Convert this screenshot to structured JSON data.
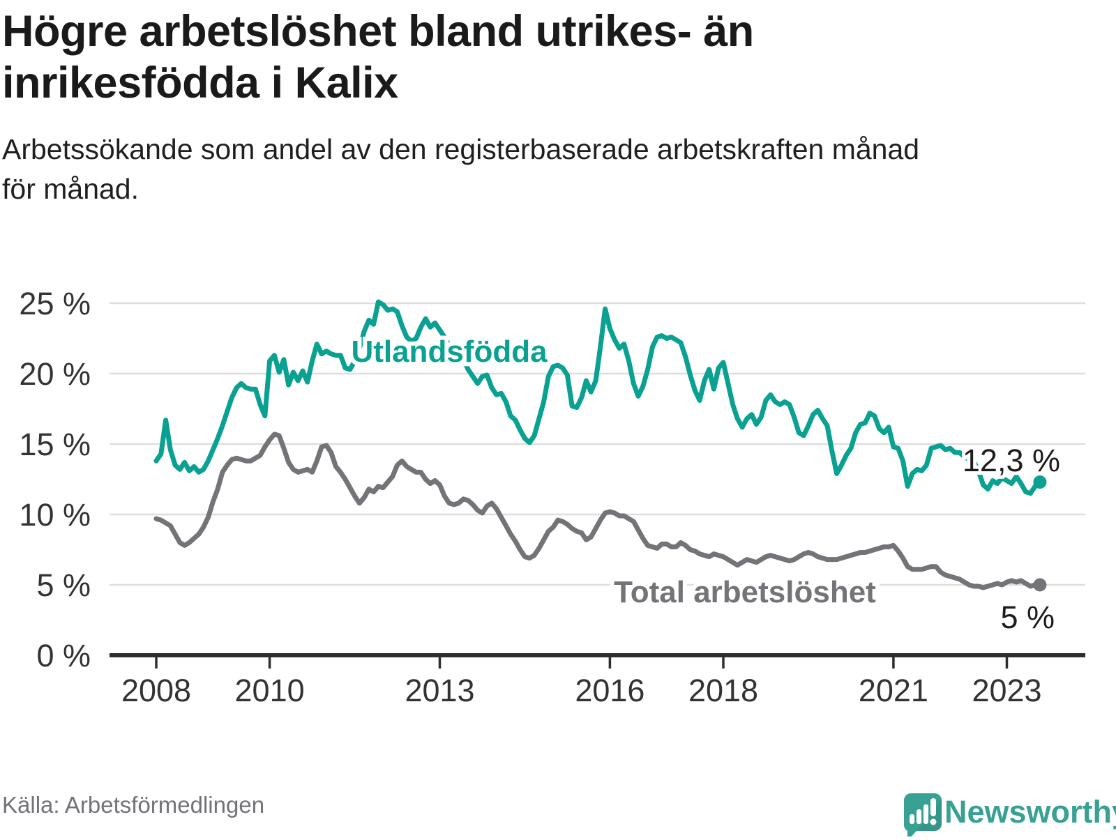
{
  "header": {
    "title_line1": "Högre arbetslöshet bland utrikes- än",
    "title_line2": "inrikesfödda i Kalix",
    "subtitle_line1": "Arbetssökande som andel av den registerbaserade arbetskraften månad",
    "subtitle_line2": "för månad."
  },
  "footer": {
    "source": "Källa: Arbetsförmedlingen",
    "brand": "Newsworthy"
  },
  "colors": {
    "series_foreign": "#0aa192",
    "series_total": "#737378",
    "grid": "#dedede",
    "axis": "#2d2d2d",
    "axis_text": "#333333",
    "annotation_text": "#1d1d1d",
    "logo_teal": "#38a193",
    "source_text": "#72727a"
  },
  "chart_data": {
    "type": "line",
    "title": "Högre arbetslöshet bland utrikes- än inrikesfödda i Kalix",
    "subtitle": "Arbetssökande som andel av den registerbaserade arbetskraften månad för månad.",
    "xlabel": "",
    "ylabel": "",
    "grid": "horizontal",
    "legend_position": "inline-labels",
    "x_start_year": 2008,
    "x_start_month": 1,
    "frequency": "monthly",
    "ylim": [
      0,
      25
    ],
    "yticks": [
      0,
      5,
      10,
      15,
      20,
      25
    ],
    "ytick_labels": [
      "0 %",
      "5 %",
      "10 %",
      "15 %",
      "20 %",
      "25 %"
    ],
    "xticks": [
      2008,
      2010,
      2013,
      2016,
      2018,
      2021,
      2023
    ],
    "xtick_labels": [
      "2008",
      "2010",
      "2013",
      "2016",
      "2018",
      "2021",
      "2023"
    ],
    "series": [
      {
        "name": "Utlandsfödda",
        "color": "#0aa192",
        "end_label": "12,3 %",
        "end_value": 12.3,
        "values": [
          13.8,
          14.3,
          16.7,
          14.6,
          13.5,
          13.2,
          13.7,
          13.1,
          13.4,
          13.0,
          13.2,
          13.8,
          14.6,
          15.4,
          16.3,
          17.3,
          18.3,
          19.0,
          19.3,
          19.0,
          18.9,
          18.9,
          17.8,
          17.0,
          20.9,
          21.3,
          20.1,
          21.0,
          19.2,
          20.1,
          19.5,
          20.2,
          19.4,
          20.9,
          22.1,
          21.4,
          21.6,
          21.4,
          21.3,
          21.3,
          20.4,
          20.3,
          20.9,
          21.8,
          23.0,
          23.8,
          23.5,
          25.1,
          24.9,
          24.5,
          24.6,
          24.4,
          23.4,
          22.6,
          22.3,
          22.5,
          23.3,
          23.9,
          23.3,
          23.6,
          23.1,
          22.6,
          22.0,
          21.5,
          21.0,
          21.0,
          20.3,
          19.8,
          19.3,
          19.8,
          19.9,
          19.0,
          18.5,
          18.6,
          18.0,
          17.0,
          16.7,
          16.0,
          15.4,
          15.1,
          15.6,
          16.8,
          18.0,
          19.8,
          20.5,
          20.6,
          20.4,
          19.9,
          17.7,
          17.6,
          18.3,
          19.5,
          18.7,
          19.5,
          21.9,
          24.6,
          23.2,
          22.4,
          21.8,
          22.1,
          20.9,
          19.3,
          18.4,
          19.1,
          20.3,
          21.9,
          22.6,
          22.7,
          22.5,
          22.6,
          22.4,
          22.2,
          21.2,
          19.9,
          18.8,
          18.1,
          19.5,
          20.3,
          18.9,
          20.4,
          20.8,
          19.3,
          17.8,
          16.8,
          16.2,
          16.8,
          17.1,
          16.4,
          16.9,
          18.1,
          18.5,
          18.0,
          17.8,
          18.0,
          17.8,
          16.9,
          15.8,
          15.6,
          16.3,
          17.1,
          17.4,
          16.8,
          16.3,
          14.5,
          12.9,
          13.5,
          14.2,
          14.7,
          15.8,
          16.4,
          16.5,
          17.2,
          17.0,
          16.1,
          15.8,
          16.2,
          14.8,
          14.7,
          13.8,
          12.0,
          12.9,
          13.2,
          13.1,
          13.5,
          14.7,
          14.8,
          14.9,
          14.6,
          14.7,
          14.4,
          14.4,
          14.1,
          13.9,
          13.8,
          13.1,
          12.1,
          11.8,
          12.4,
          12.2,
          12.6,
          12.4,
          12.2,
          12.7,
          12.2,
          11.6,
          11.5,
          12.0,
          12.3
        ]
      },
      {
        "name": "Total arbetslöshet",
        "color": "#737378",
        "end_label": "5 %",
        "end_value": 5.0,
        "values": [
          9.7,
          9.6,
          9.4,
          9.2,
          8.6,
          8.0,
          7.8,
          8.0,
          8.3,
          8.6,
          9.1,
          9.8,
          10.9,
          11.8,
          13.0,
          13.5,
          13.9,
          14.0,
          13.9,
          13.8,
          13.8,
          14.0,
          14.2,
          14.8,
          15.3,
          15.7,
          15.6,
          14.7,
          13.7,
          13.2,
          13.0,
          13.1,
          13.2,
          13.0,
          13.8,
          14.8,
          14.9,
          14.4,
          13.4,
          13.0,
          12.5,
          11.9,
          11.3,
          10.8,
          11.2,
          11.8,
          11.6,
          12.0,
          11.9,
          12.3,
          12.7,
          13.5,
          13.8,
          13.4,
          13.2,
          13.0,
          13.0,
          12.5,
          12.2,
          12.4,
          12.1,
          11.3,
          10.8,
          10.7,
          10.8,
          11.1,
          11.0,
          10.7,
          10.3,
          10.1,
          10.6,
          10.8,
          10.4,
          9.8,
          9.2,
          8.6,
          8.1,
          7.5,
          7.0,
          6.9,
          7.1,
          7.6,
          8.2,
          8.8,
          9.1,
          9.6,
          9.5,
          9.3,
          9.0,
          8.8,
          8.7,
          8.2,
          8.4,
          9.0,
          9.6,
          10.1,
          10.2,
          10.1,
          9.9,
          9.9,
          9.7,
          9.5,
          8.9,
          8.3,
          7.8,
          7.7,
          7.6,
          7.9,
          7.9,
          7.7,
          7.7,
          8.0,
          7.8,
          7.5,
          7.4,
          7.2,
          7.1,
          7.0,
          7.2,
          7.1,
          7.0,
          6.8,
          6.6,
          6.4,
          6.6,
          6.8,
          6.7,
          6.6,
          6.8,
          7.0,
          7.1,
          7.0,
          6.9,
          6.8,
          6.7,
          6.8,
          7.0,
          7.2,
          7.3,
          7.2,
          7.0,
          6.9,
          6.8,
          6.8,
          6.8,
          6.9,
          7.0,
          7.1,
          7.2,
          7.3,
          7.3,
          7.4,
          7.5,
          7.6,
          7.7,
          7.7,
          7.8,
          7.4,
          6.9,
          6.3,
          6.1,
          6.1,
          6.1,
          6.2,
          6.3,
          6.3,
          5.9,
          5.7,
          5.6,
          5.5,
          5.4,
          5.2,
          5.0,
          4.9,
          4.9,
          4.8,
          4.9,
          5.0,
          5.1,
          5.0,
          5.2,
          5.3,
          5.2,
          5.3,
          5.1,
          4.9,
          5.0,
          5.0
        ]
      }
    ]
  }
}
